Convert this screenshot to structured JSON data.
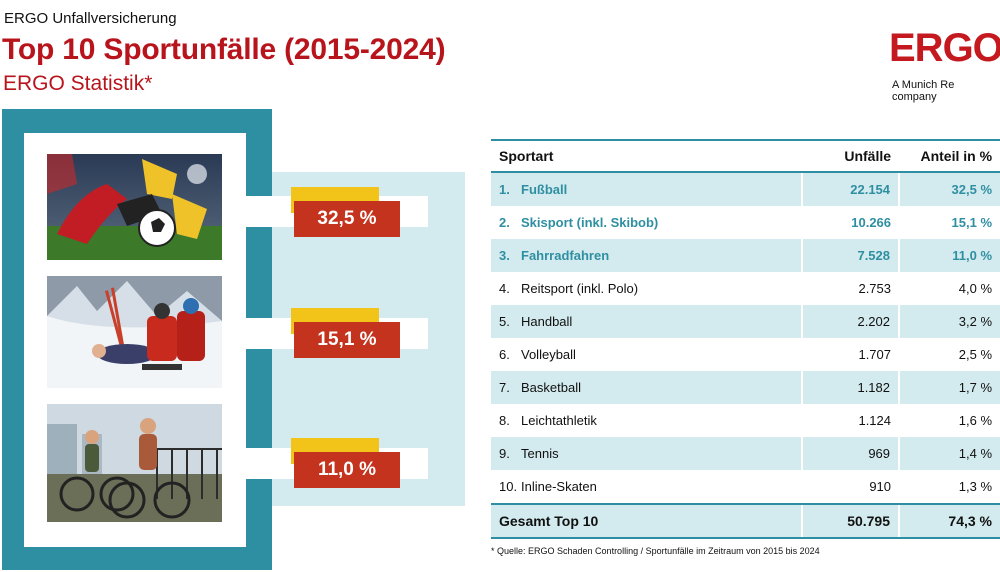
{
  "header": {
    "supertitle": "ERGO Unfallversicherung",
    "title": "Top 10 Sportunfälle (2015-2024)",
    "subtitle": "ERGO Statistik*"
  },
  "brand": {
    "logo": "ERGO",
    "tagline": "A Munich Re company",
    "color": "#c41a1f"
  },
  "colors": {
    "title_red": "#b8141c",
    "teal": "#2f8fa2",
    "light_blue": "#d3ebee",
    "badge_red": "#c4331e",
    "badge_yellow": "#f2c41a"
  },
  "highlights": [
    {
      "photo": "football-photo",
      "percent": "32,5 %"
    },
    {
      "photo": "skiing-photo",
      "percent": "15,1 %"
    },
    {
      "photo": "cycling-photo",
      "percent": "11,0 %"
    }
  ],
  "table": {
    "headers": {
      "sport": "Sportart",
      "accidents": "Unfälle",
      "share": "Anteil in %"
    },
    "rows": [
      {
        "rank": "1.",
        "sport": "Fußball",
        "accidents": "22.154",
        "share": "32,5 %"
      },
      {
        "rank": "2.",
        "sport": "Skisport (inkl. Skibob)",
        "accidents": "10.266",
        "share": "15,1 %"
      },
      {
        "rank": "3.",
        "sport": "Fahrradfahren",
        "accidents": "7.528",
        "share": "11,0 %"
      },
      {
        "rank": "4.",
        "sport": "Reitsport (inkl. Polo)",
        "accidents": "2.753",
        "share": "4,0 %"
      },
      {
        "rank": "5.",
        "sport": "Handball",
        "accidents": "2.202",
        "share": "3,2 %"
      },
      {
        "rank": "6.",
        "sport": "Volleyball",
        "accidents": "1.707",
        "share": "2,5 %"
      },
      {
        "rank": "7.",
        "sport": "Basketball",
        "accidents": "1.182",
        "share": "1,7 %"
      },
      {
        "rank": "8.",
        "sport": "Leichtathletik",
        "accidents": "1.124",
        "share": "1,6 %"
      },
      {
        "rank": "9.",
        "sport": "Tennis",
        "accidents": "969",
        "share": "1,4 %"
      },
      {
        "rank": "10.",
        "sport": "Inline-Skaten",
        "accidents": "910",
        "share": "1,3 %"
      }
    ],
    "total": {
      "label": "Gesamt Top 10",
      "accidents": "50.795",
      "share": "74,3 %"
    }
  },
  "footnote": "* Quelle: ERGO Schaden Controlling / Sportunfälle im Zeitraum von 2015 bis 2024"
}
